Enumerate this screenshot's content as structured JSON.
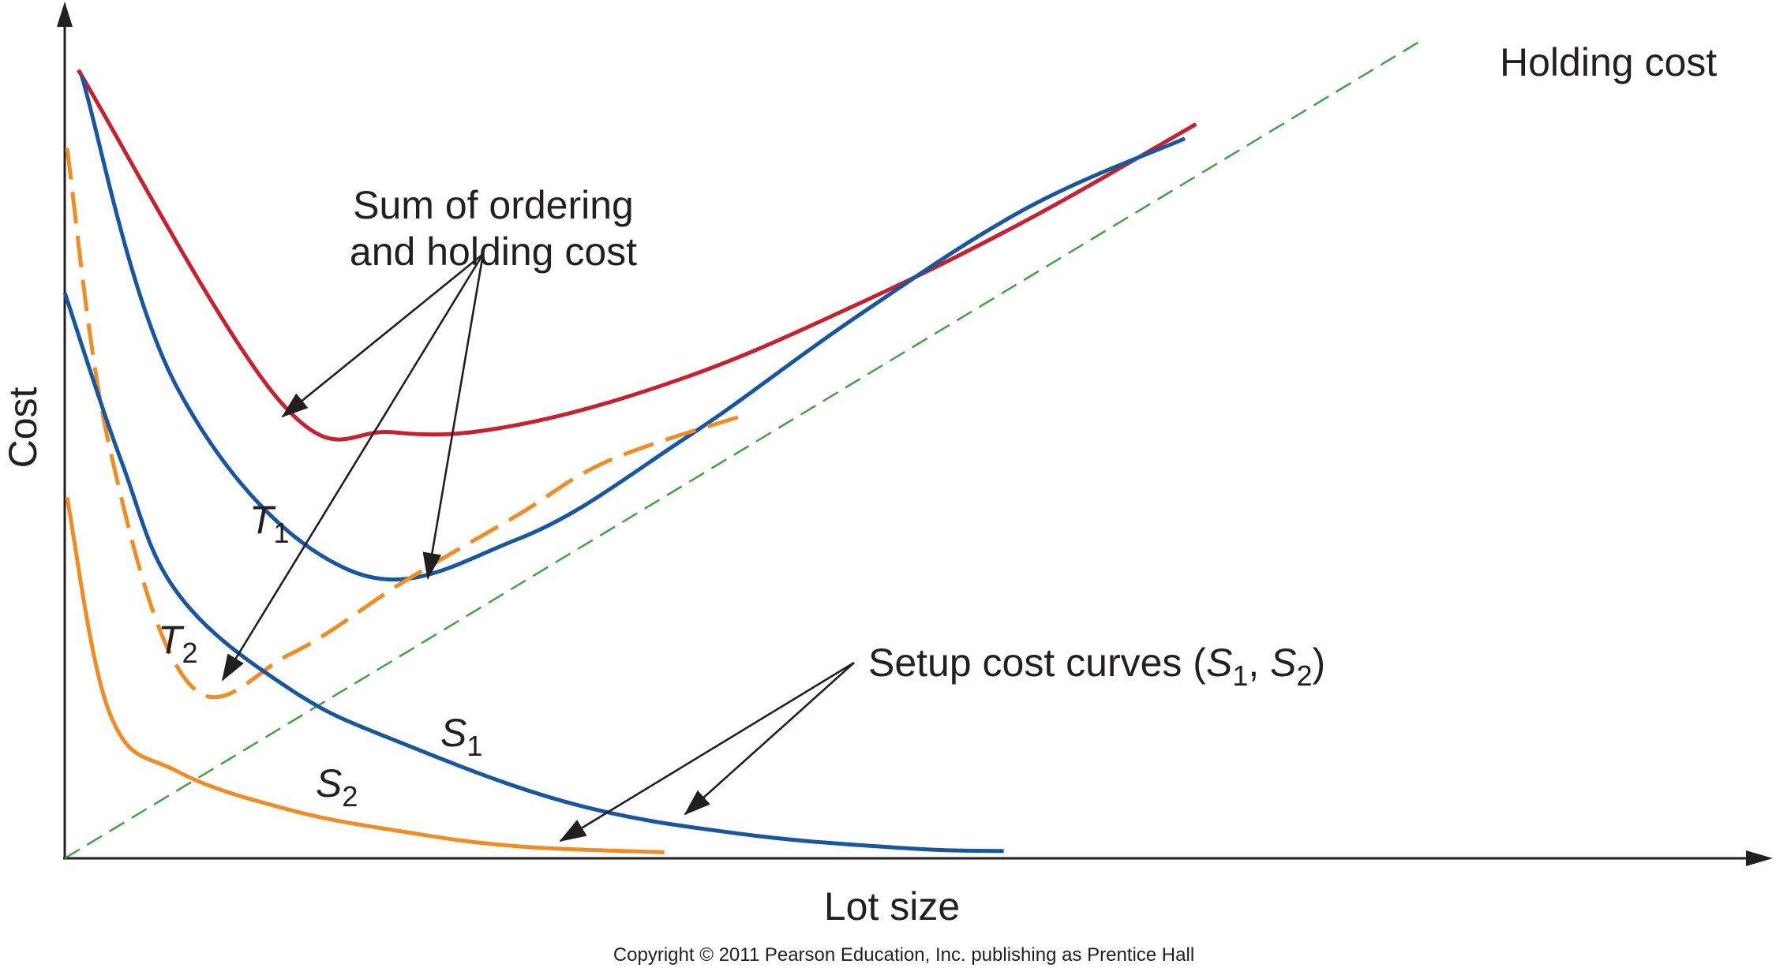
{
  "chart_data": {
    "type": "line",
    "title": "",
    "xlabel": "Lot size",
    "ylabel": "Cost",
    "xlim": [
      0,
      1500
    ],
    "ylim": [
      0,
      700
    ],
    "grid": false,
    "series": [
      {
        "name": "Holding cost",
        "style": "dashed",
        "color": "#3aa23a",
        "x": [
          0,
          1200
        ],
        "y": [
          0,
          680
        ]
      },
      {
        "name": "T1",
        "style": "solid",
        "color": "#c8202f",
        "x": [
          12,
          190,
          290,
          400,
          550,
          700,
          850,
          1000
        ],
        "y": [
          655,
          380,
          354,
          360,
          400,
          460,
          530,
          610
        ]
      },
      {
        "name": "T1",
        "style": "solid",
        "color": "#1756a0",
        "x": [
          15,
          100,
          250,
          400,
          550,
          700,
          850,
          990
        ],
        "y": [
          650,
          390,
          240,
          265,
          350,
          450,
          540,
          598
        ]
      },
      {
        "name": "T2",
        "style": "dashed",
        "color": "#f08c22",
        "x": [
          2,
          40,
          110,
          200,
          300,
          400,
          480,
          600
        ],
        "y": [
          590,
          340,
          145,
          170,
          230,
          285,
          330,
          368
        ]
      },
      {
        "name": "S1",
        "style": "solid",
        "color": "#1756a0",
        "x": [
          0,
          50,
          100,
          200,
          300,
          450,
          600,
          750,
          830
        ],
        "y": [
          470,
          330,
          220,
          140,
          95,
          45,
          20,
          8,
          6
        ]
      },
      {
        "name": "S2",
        "style": "solid",
        "color": "#f08c22",
        "x": [
          2,
          40,
          100,
          200,
          300,
          400,
          530
        ],
        "y": [
          300,
          120,
          72,
          40,
          22,
          10,
          5
        ]
      }
    ],
    "annotations": {
      "holding": "Holding cost",
      "sum_line1": "Sum of ordering",
      "sum_line2": "and holding cost",
      "setup_prefix": "Setup cost curves (",
      "setup_s1": "S",
      "setup_s1_sub": "1",
      "setup_sep": ", ",
      "setup_s2": "S",
      "setup_s2_sub": "2",
      "setup_suffix": ")",
      "t1": "T",
      "t1_sub": "1",
      "t2": "T",
      "t2_sub": "2",
      "s1": "S",
      "s1_sub": "1",
      "s2": "S",
      "s2_sub": "2"
    },
    "colors": {
      "axis": "#231f20",
      "red": "#c8202f",
      "blue": "#1756a0",
      "orange": "#f08c22",
      "green": "#3aa23a",
      "arrow": "#231f20"
    }
  },
  "copyright": "Copyright © 2011 Pearson Education, Inc. publishing as Prentice Hall"
}
